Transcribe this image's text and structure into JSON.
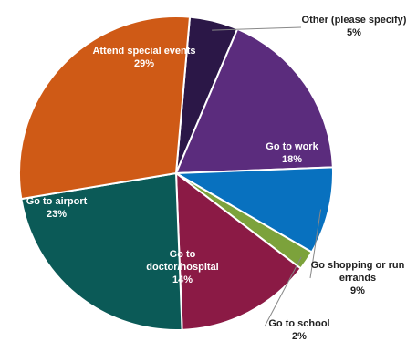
{
  "chart_data": {
    "type": "pie",
    "slices": [
      {
        "label": "Other (please specify)",
        "display": [
          "Other (please specify)"
        ],
        "pct": "5%",
        "value": 5,
        "color": "#2B1747",
        "text_color": "#222222"
      },
      {
        "label": "Go to work",
        "display": [
          "Go to work"
        ],
        "pct": "18%",
        "value": 18,
        "color": "#5B2C7D",
        "text_color": "#ffffff"
      },
      {
        "label": "Go shopping or run errands",
        "display": [
          "Go shopping or run",
          "errands"
        ],
        "pct": "9%",
        "value": 9,
        "color": "#0871BF",
        "text_color": "#222222"
      },
      {
        "label": "Go to school",
        "display": [
          "Go to school"
        ],
        "pct": "2%",
        "value": 2,
        "color": "#7CA23B",
        "text_color": "#222222"
      },
      {
        "label": "Go to doctor/hospital",
        "display": [
          "Go to",
          "doctor/hospital"
        ],
        "pct": "14%",
        "value": 14,
        "color": "#8B1A45",
        "text_color": "#ffffff"
      },
      {
        "label": "Go to airport",
        "display": [
          "Go to airport"
        ],
        "pct": "23%",
        "value": 23,
        "color": "#0B5A57",
        "text_color": "#ffffff"
      },
      {
        "label": "Attend special events",
        "display": [
          "Attend special events"
        ],
        "pct": "29%",
        "value": 29,
        "color": "#CF5A16",
        "text_color": "#ffffff"
      }
    ]
  }
}
